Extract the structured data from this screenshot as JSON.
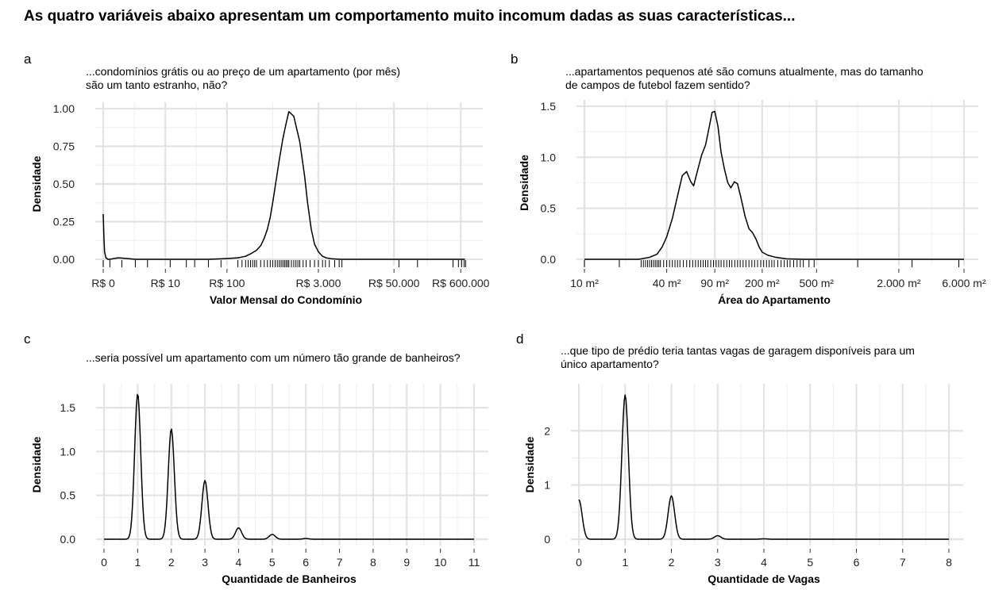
{
  "title": "As quatro variáveis abaixo apresentam um comportamento muito incomum dadas as suas características...",
  "chart_data": [
    {
      "panel": "a",
      "type": "line",
      "subtitle_lines": [
        "...condomínios grátis ou ao preço de um apartamento (por mês)",
        "são um tanto estranho, não?"
      ],
      "xlabel": "Valor Mensal do Condomínio",
      "ylabel": "Densidade",
      "x_scale": "pseudo-log",
      "xlim": [
        0,
        800000
      ],
      "ylim": [
        0,
        1.0
      ],
      "x_ticks": [
        0,
        10,
        100,
        3000,
        50000,
        600000
      ],
      "x_tick_labels": [
        "R$ 0",
        "R$ 10",
        "R$ 100",
        "R$ 3.000",
        "R$ 50.000",
        "R$ 600.000"
      ],
      "y_ticks": [
        0,
        0.25,
        0.5,
        0.75,
        1.0
      ],
      "y_tick_labels": [
        "0.00",
        "0.25",
        "0.50",
        "0.75",
        "1.00"
      ],
      "x": [
        0,
        0.01,
        0.05,
        0.1,
        0.2,
        0.35,
        0.5,
        0.8,
        1.2,
        2,
        3,
        5,
        8,
        12,
        20,
        30,
        50,
        80,
        100,
        150,
        200,
        250,
        300,
        350,
        400,
        450,
        500,
        550,
        600,
        700,
        800,
        900,
        1000,
        1200,
        1500,
        1800,
        2000,
        2300,
        2600,
        3000,
        3500,
        4000,
        5000,
        7000,
        10000,
        20000,
        50000,
        100000,
        300000,
        600000,
        700000
      ],
      "y": [
        0.3,
        0.27,
        0.15,
        0.05,
        0.01,
        0.0,
        0.0,
        0.005,
        0.01,
        0.005,
        0.0,
        0.0,
        0.0,
        0.0,
        0.0,
        0.0,
        0.0,
        0.003,
        0.005,
        0.01,
        0.02,
        0.04,
        0.06,
        0.09,
        0.14,
        0.2,
        0.28,
        0.38,
        0.48,
        0.66,
        0.8,
        0.9,
        0.98,
        0.95,
        0.78,
        0.55,
        0.38,
        0.2,
        0.1,
        0.05,
        0.02,
        0.01,
        0.003,
        0.0,
        0.0,
        0.0,
        0.0,
        0.0,
        0.0,
        0.0,
        0.0
      ],
      "rug": [
        0,
        0.5,
        1.5,
        3,
        5,
        12,
        22,
        30,
        50,
        80,
        150,
        175,
        200,
        220,
        240,
        260,
        280,
        300,
        350,
        400,
        450,
        500,
        550,
        600,
        650,
        700,
        750,
        800,
        850,
        900,
        950,
        1000,
        1100,
        1200,
        1300,
        1400,
        1500,
        1700,
        1900,
        2200,
        2600,
        3000,
        3500,
        3900,
        4500,
        5500,
        6500,
        7200,
        60000,
        120000,
        450000,
        550000,
        620000,
        680000,
        720000
      ]
    },
    {
      "panel": "b",
      "type": "line",
      "subtitle_lines": [
        "...apartamentos pequenos até são comuns atualmente, mas do tamanho",
        "de campos de futebol fazem sentido?"
      ],
      "xlabel": "Área do Apartamento",
      "ylabel": "Densidade",
      "x_scale": "log10",
      "xlim": [
        10,
        6000
      ],
      "ylim": [
        0,
        1.5
      ],
      "x_ticks": [
        10,
        40,
        90,
        200,
        500,
        2000,
        6000
      ],
      "x_tick_labels": [
        "10 m²",
        "40 m²",
        "90 m²",
        "200 m²",
        "500 m²",
        "2.000 m²",
        "6.000 m²"
      ],
      "y_ticks": [
        0,
        0.5,
        1.0,
        1.5
      ],
      "y_tick_labels": [
        "0.0",
        "0.5",
        "1.0",
        "1.5"
      ],
      "x": [
        10,
        25,
        30,
        34,
        37,
        40,
        44,
        48,
        52,
        56,
        60,
        63,
        67,
        72,
        77,
        82,
        86,
        90,
        95,
        100,
        106,
        112,
        118,
        125,
        132,
        140,
        150,
        160,
        170,
        180,
        190,
        200,
        220,
        250,
        300,
        400,
        6000
      ],
      "y": [
        0,
        0,
        0.02,
        0.05,
        0.12,
        0.22,
        0.4,
        0.62,
        0.82,
        0.86,
        0.76,
        0.72,
        0.86,
        1.02,
        1.12,
        1.3,
        1.44,
        1.45,
        1.3,
        1.05,
        0.88,
        0.75,
        0.7,
        0.76,
        0.74,
        0.6,
        0.42,
        0.3,
        0.26,
        0.2,
        0.12,
        0.07,
        0.04,
        0.02,
        0.005,
        0,
        0
      ],
      "rug": [
        10,
        18,
        26,
        27,
        28,
        29,
        30,
        31,
        32,
        33,
        34,
        35,
        36,
        38,
        40,
        42,
        44,
        46,
        48,
        50,
        53,
        56,
        59,
        62,
        65,
        68,
        71,
        74,
        77,
        80,
        84,
        88,
        92,
        96,
        100,
        105,
        110,
        115,
        120,
        126,
        132,
        138,
        145,
        152,
        160,
        168,
        176,
        185,
        195,
        205,
        215,
        225,
        235,
        245,
        260,
        275,
        290,
        305,
        320,
        340,
        360,
        380,
        400,
        440,
        480,
        1000,
        2500,
        5500
      ]
    },
    {
      "panel": "c",
      "type": "line",
      "subtitle_lines": [
        "...seria possível um apartamento com um número tão grande de banheiros?"
      ],
      "xlabel": "Quantidade de Banheiros",
      "ylabel": "Densidade",
      "x_scale": "linear",
      "xlim": [
        0,
        11
      ],
      "ylim": [
        0,
        1.7
      ],
      "x_ticks": [
        0,
        1,
        2,
        3,
        4,
        5,
        6,
        7,
        8,
        9,
        10,
        11
      ],
      "x_tick_labels": [
        "0",
        "1",
        "2",
        "3",
        "4",
        "5",
        "6",
        "7",
        "8",
        "9",
        "10",
        "11"
      ],
      "y_ticks": [
        0,
        0.5,
        1.0,
        1.5
      ],
      "y_tick_labels": [
        "0.0",
        "0.5",
        "1.0",
        "1.5"
      ],
      "peaks": [
        {
          "x": 1,
          "height": 1.66
        },
        {
          "x": 2,
          "height": 1.26
        },
        {
          "x": 3,
          "height": 0.67
        },
        {
          "x": 4,
          "height": 0.13
        },
        {
          "x": 5,
          "height": 0.055
        },
        {
          "x": 6,
          "height": 0.008
        }
      ],
      "bandwidth": 0.09
    },
    {
      "panel": "d",
      "type": "line",
      "subtitle_lines": [
        "...que tipo de prédio teria tantas vagas de garagem disponíveis para um",
        "único apartamento?"
      ],
      "xlabel": "Quantidade de Vagas",
      "ylabel": "Densidade",
      "x_scale": "linear",
      "xlim": [
        0,
        8
      ],
      "ylim": [
        0,
        2.75
      ],
      "x_ticks": [
        0,
        1,
        2,
        3,
        4,
        5,
        6,
        7,
        8
      ],
      "x_tick_labels": [
        "0",
        "1",
        "2",
        "3",
        "4",
        "5",
        "6",
        "7",
        "8"
      ],
      "y_ticks": [
        0,
        1,
        2
      ],
      "y_tick_labels": [
        "0",
        "1",
        "2"
      ],
      "peaks": [
        {
          "x": 0,
          "height": 0.73
        },
        {
          "x": 1,
          "height": 2.66
        },
        {
          "x": 2,
          "height": 0.8
        },
        {
          "x": 3,
          "height": 0.065
        },
        {
          "x": 4,
          "height": 0.008
        }
      ],
      "bandwidth": 0.07
    }
  ]
}
